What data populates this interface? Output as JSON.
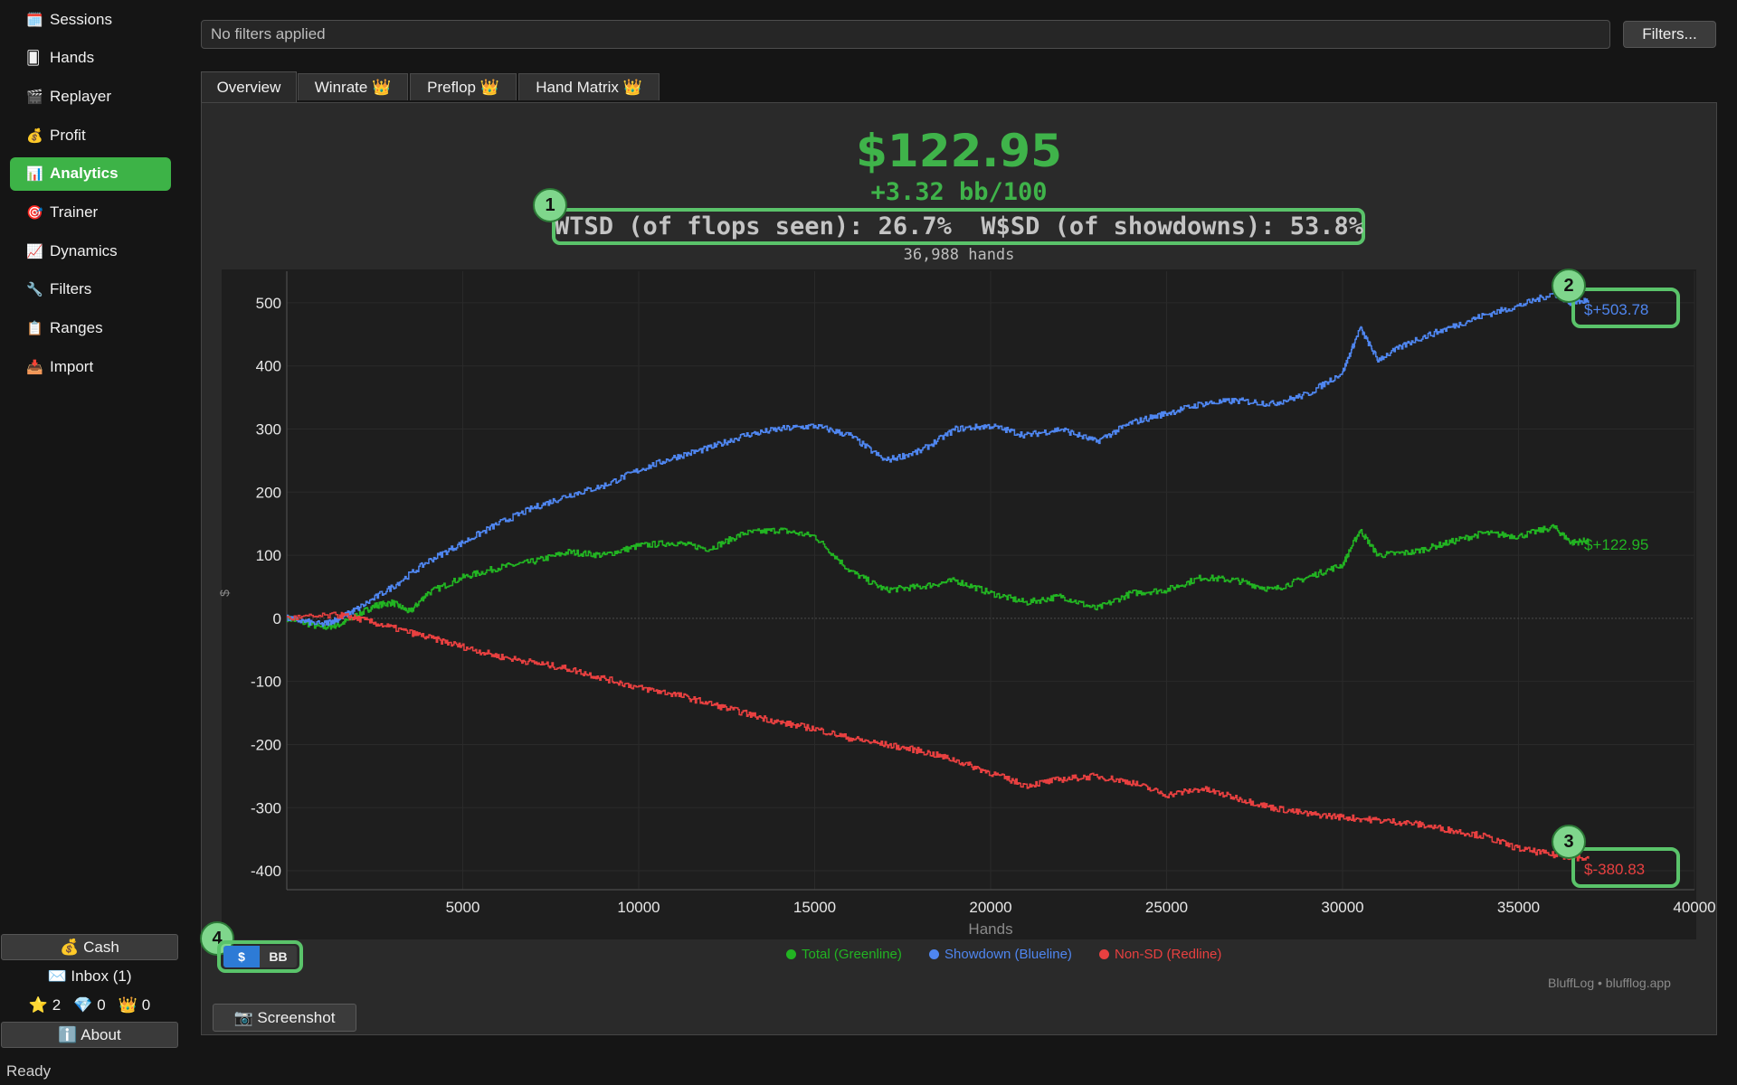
{
  "sidebar": {
    "items": [
      {
        "icon": "🗓️",
        "icon_name": "calendar-icon",
        "label": "Sessions"
      },
      {
        "icon": "🂠",
        "icon_name": "card-icon",
        "label": "Hands"
      },
      {
        "icon": "🎬",
        "icon_name": "clapper-icon",
        "label": "Replayer"
      },
      {
        "icon": "💰",
        "icon_name": "money-bag-icon",
        "label": "Profit"
      },
      {
        "icon": "📊",
        "icon_name": "bar-chart-icon",
        "label": "Analytics",
        "active": true
      },
      {
        "icon": "🎯",
        "icon_name": "target-icon",
        "label": "Trainer"
      },
      {
        "icon": "📈",
        "icon_name": "trend-icon",
        "label": "Dynamics"
      },
      {
        "icon": "🔧",
        "icon_name": "wrench-icon",
        "label": "Filters"
      },
      {
        "icon": "📋",
        "icon_name": "clipboard-icon",
        "label": "Ranges"
      },
      {
        "icon": "📥",
        "icon_name": "inbox-tray-icon",
        "label": "Import"
      }
    ],
    "cash_label": "💰 Cash",
    "inbox_label": "✉️ Inbox  (1)",
    "counters": "⭐ 2   💎 0   👑 0",
    "about_label": "ℹ️ About"
  },
  "status_bar": "Ready",
  "filter": {
    "placeholder": "No filters applied",
    "button_label": "Filters..."
  },
  "tabs": [
    {
      "label": "Overview",
      "active": true
    },
    {
      "label": "Winrate 👑"
    },
    {
      "label": "Preflop 👑"
    },
    {
      "label": "Hand Matrix 👑"
    }
  ],
  "summary": {
    "profit": "$122.95",
    "bb100": "+3.32 bb/100",
    "wtsd_line": "WTSD (of flops seen): 26.7%  W$SD (of showdowns): 53.8%",
    "hands_count": "36,988 hands"
  },
  "badges": [
    "1",
    "2",
    "3",
    "4"
  ],
  "unit_toggle": {
    "usd": "$",
    "bb": "BB",
    "selected": "usd"
  },
  "legend": [
    {
      "label": "Total (Greenline)",
      "color": "#22b422"
    },
    {
      "label": "Showdown (Blueline)",
      "color": "#4f86f0"
    },
    {
      "label": "Non-SD (Redline)",
      "color": "#e84040"
    }
  ],
  "watermark": "BluffLog • blufflog.app",
  "screenshot_label": "📷 Screenshot",
  "colors": {
    "accent": "#3db347",
    "green": "#22b422",
    "blue": "#4f86f0",
    "red": "#e84040"
  },
  "chart_data": {
    "type": "line",
    "xlabel": "Hands",
    "ylabel": "$",
    "xlim": [
      0,
      40000
    ],
    "ylim": [
      -430,
      550
    ],
    "xticks": [
      5000,
      10000,
      15000,
      20000,
      25000,
      30000,
      35000,
      40000
    ],
    "yticks": [
      -400,
      -300,
      -200,
      -100,
      0,
      100,
      200,
      300,
      400,
      500
    ],
    "grid": true,
    "series": [
      {
        "name": "Total (Greenline)",
        "color": "#22b422",
        "end_label": "$+122.95",
        "x": [
          0,
          1000,
          1500,
          2000,
          2500,
          3000,
          3500,
          4000,
          5000,
          6000,
          7000,
          8000,
          9000,
          10000,
          11000,
          12000,
          13000,
          14000,
          15000,
          16000,
          17000,
          18000,
          19000,
          20000,
          21000,
          22000,
          23000,
          24000,
          25000,
          26000,
          27000,
          28000,
          29000,
          30000,
          30500,
          31000,
          32000,
          33000,
          34000,
          35000,
          36000,
          36500,
          36988
        ],
        "y": [
          0,
          -15,
          -10,
          5,
          20,
          25,
          10,
          40,
          65,
          80,
          90,
          105,
          100,
          115,
          120,
          110,
          135,
          140,
          130,
          75,
          45,
          50,
          60,
          40,
          25,
          35,
          15,
          40,
          45,
          65,
          60,
          45,
          65,
          85,
          140,
          100,
          105,
          120,
          135,
          130,
          145,
          120,
          123
        ]
      },
      {
        "name": "Showdown (Blueline)",
        "color": "#4f86f0",
        "end_label": "$+503.78",
        "x": [
          0,
          1000,
          1500,
          2000,
          3000,
          4000,
          5000,
          6000,
          7000,
          8000,
          9000,
          10000,
          11000,
          12000,
          13000,
          14000,
          15000,
          16000,
          17000,
          18000,
          19000,
          20000,
          21000,
          22000,
          23000,
          24000,
          25000,
          26000,
          27000,
          28000,
          29000,
          30000,
          30500,
          31000,
          32000,
          33000,
          34000,
          35000,
          36000,
          36500,
          36988
        ],
        "y": [
          0,
          -10,
          0,
          15,
          50,
          90,
          120,
          150,
          175,
          195,
          210,
          235,
          255,
          270,
          290,
          300,
          305,
          290,
          250,
          265,
          300,
          305,
          290,
          300,
          280,
          310,
          325,
          340,
          345,
          340,
          355,
          390,
          460,
          410,
          440,
          460,
          480,
          495,
          515,
          500,
          504
        ]
      },
      {
        "name": "Non-SD (Redline)",
        "color": "#e84040",
        "end_label": "$-380.83",
        "x": [
          0,
          1500,
          2000,
          3000,
          4000,
          5000,
          6000,
          7000,
          8000,
          9000,
          10000,
          11000,
          12000,
          13000,
          14000,
          15000,
          16000,
          17000,
          18000,
          19000,
          20000,
          21000,
          22000,
          23000,
          24000,
          25000,
          26000,
          27000,
          28000,
          29000,
          30000,
          31000,
          32000,
          33000,
          34000,
          35000,
          36000,
          36988
        ],
        "y": [
          0,
          5,
          0,
          -15,
          -30,
          -45,
          -60,
          -70,
          -80,
          -95,
          -110,
          -120,
          -135,
          -150,
          -165,
          -175,
          -190,
          -200,
          -210,
          -225,
          -245,
          -265,
          -255,
          -250,
          -260,
          -280,
          -270,
          -285,
          -300,
          -310,
          -315,
          -320,
          -325,
          -335,
          -345,
          -365,
          -375,
          -381
        ]
      }
    ]
  }
}
